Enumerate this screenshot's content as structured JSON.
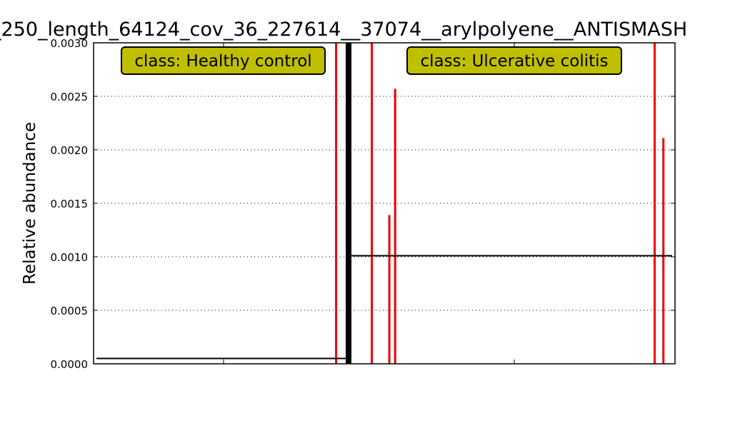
{
  "chart_data": {
    "type": "bar",
    "title": "_250_length_64124_cov_36_227614__37074__arylpolyene__ANTISMASH",
    "ylabel": "Relative abundance",
    "xlabel": "",
    "ylim": [
      0,
      0.003
    ],
    "yticks": [
      "0.0000",
      "0.0005",
      "0.0010",
      "0.0015",
      "0.0020",
      "0.0025",
      "0.0030"
    ],
    "grid": "horizontal dotted",
    "classes": [
      {
        "name": "Healthy control",
        "label": "class: Healthy control",
        "mean": 5e-05,
        "nonzero_samples": [
          {
            "index": 75,
            "value": 0.003
          }
        ]
      },
      {
        "name": "Ulcerative colitis",
        "label": "class: Ulcerative colitis",
        "mean": 0.00101,
        "nonzero_samples": [
          {
            "index": 7,
            "value": 0.003
          },
          {
            "index": 13,
            "value": 0.00139
          },
          {
            "index": 15,
            "value": 0.00257
          },
          {
            "index": 104,
            "value": 0.003
          },
          {
            "index": 107,
            "value": 0.00211
          }
        ]
      }
    ],
    "colors": {
      "bar": "#ee0000",
      "class_box": "#bfbf00",
      "line": "#000000"
    }
  }
}
